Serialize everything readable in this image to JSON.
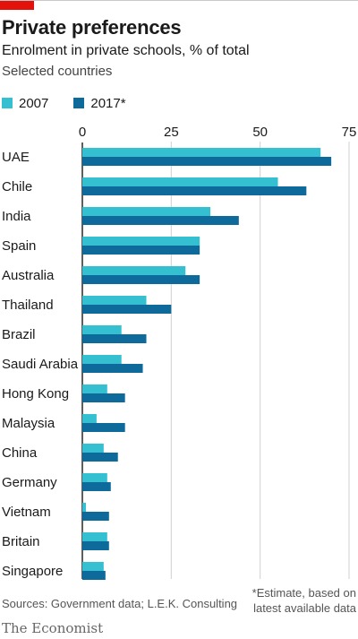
{
  "title": "Private preferences",
  "subtitle": "Enrolment in private schools, % of total",
  "note": "Selected countries",
  "legend": [
    {
      "label": "2007",
      "color": "#35c0d2"
    },
    {
      "label": "2017*",
      "color": "#0e6a9b"
    }
  ],
  "source": "Sources: Government data; L.E.K. Consulting",
  "footnote": "*Estimate, based on latest available data",
  "brand": "The Economist",
  "colors": {
    "series_2007": "#35c0d2",
    "series_2017": "#0e6a9b",
    "accent": "#e3120b",
    "gridline": "#d0d0d0",
    "zero_line": "#1a1a1a"
  },
  "chart_data": {
    "type": "bar",
    "orientation": "horizontal",
    "categories": [
      "UAE",
      "Chile",
      "India",
      "Spain",
      "Australia",
      "Thailand",
      "Brazil",
      "Saudi Arabia",
      "Hong Kong",
      "Malaysia",
      "China",
      "Germany",
      "Vietnam",
      "Britain",
      "Singapore"
    ],
    "series": [
      {
        "name": "2007",
        "values": [
          67,
          55,
          36,
          33,
          29,
          18,
          11,
          11,
          7,
          4,
          6,
          7,
          1,
          7,
          6
        ]
      },
      {
        "name": "2017*",
        "values": [
          70,
          63,
          44,
          33,
          33,
          25,
          18,
          17,
          12,
          12,
          10,
          8,
          7.5,
          7.5,
          6.5
        ]
      }
    ],
    "title": "Private preferences",
    "xlabel": "",
    "ylabel": "",
    "xlim": [
      0,
      75
    ],
    "xticks": [
      0,
      25,
      50,
      75
    ],
    "grid": true,
    "legend_position": "top-left"
  }
}
